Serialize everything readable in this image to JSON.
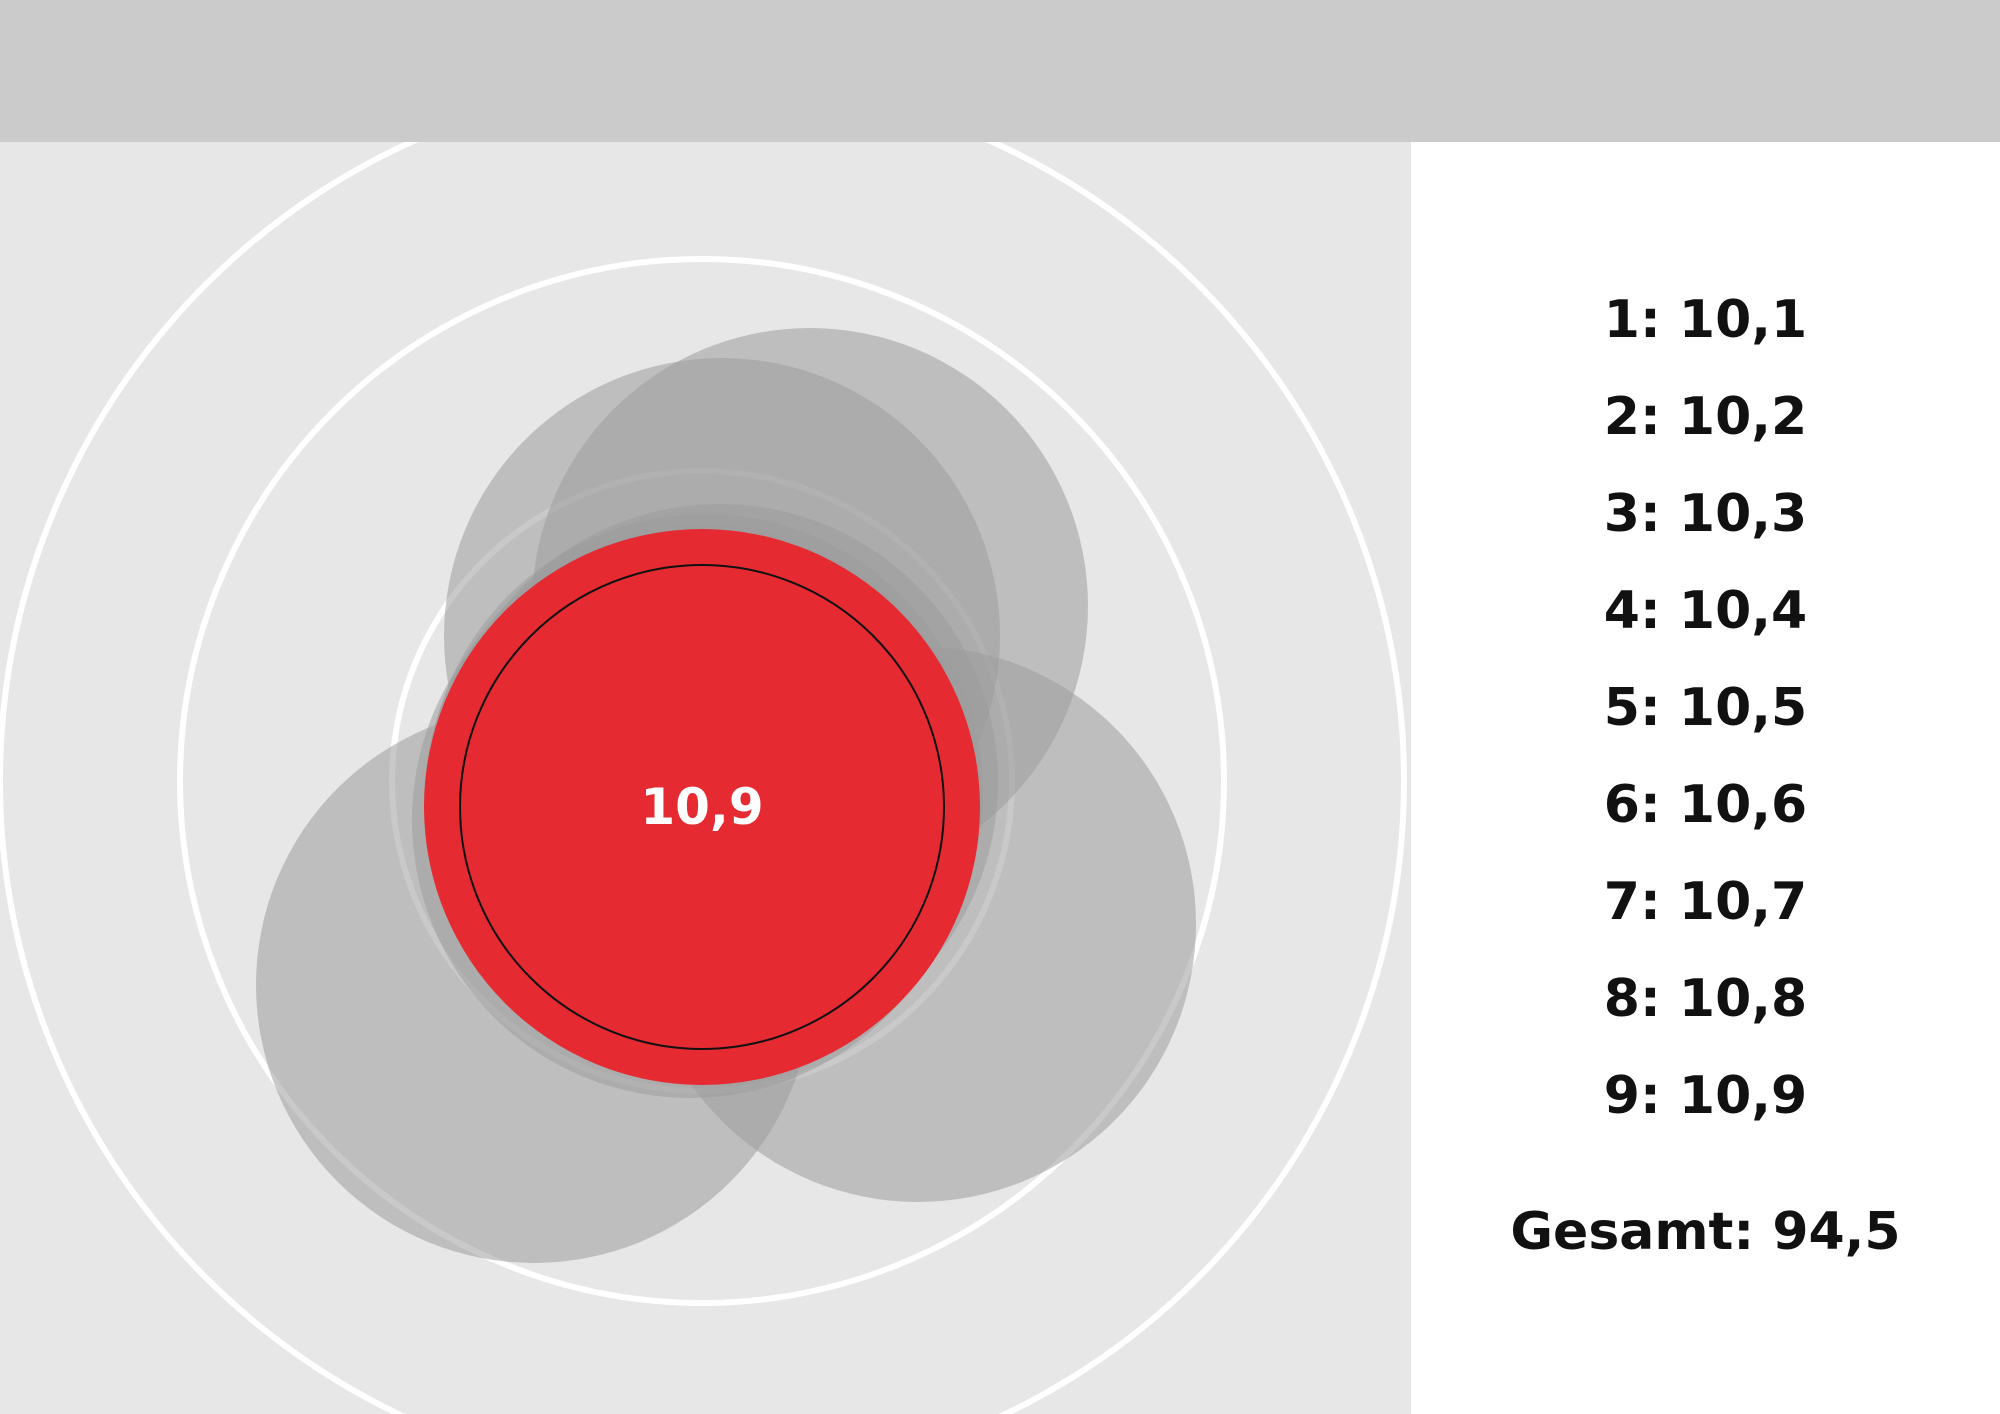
{
  "target": {
    "current_score": "10,9",
    "colors": {
      "background": "#e7e7e7",
      "rings": "#ffffff",
      "previous_shots": "#a6a6a6",
      "current_shot": "#e52a32",
      "topbar": "#cbcbcb"
    },
    "previous_shot_count": 8
  },
  "scores": [
    {
      "shot": "1",
      "value": "10,1"
    },
    {
      "shot": "2",
      "value": "10,2"
    },
    {
      "shot": "3",
      "value": "10,3"
    },
    {
      "shot": "4",
      "value": "10,4"
    },
    {
      "shot": "5",
      "value": "10,5"
    },
    {
      "shot": "6",
      "value": "10,6"
    },
    {
      "shot": "7",
      "value": "10,7"
    },
    {
      "shot": "8",
      "value": "10,8"
    },
    {
      "shot": "9",
      "value": "10,9"
    }
  ],
  "total": {
    "label": "Gesamt",
    "value": "94,5"
  }
}
